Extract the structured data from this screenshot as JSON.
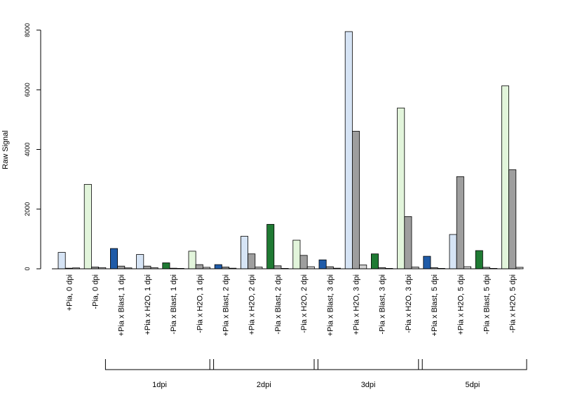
{
  "chart_data": {
    "type": "bar",
    "title": "",
    "xlabel": "",
    "ylabel": "Raw Signal",
    "ylim": [
      0,
      8000
    ],
    "y_ticks": [
      0,
      2000,
      4000,
      6000,
      8000
    ],
    "categories": [
      "+Pia, 0 dpi",
      "-Pia, 0 dpi",
      "+Pia x Blast, 1 dpi",
      "+Pia x H2O, 1 dpi",
      "-Pia x Blast, 1 dpi",
      "-Pia x H2O, 1 dpi",
      "+Pia x Blast, 2 dpi",
      "+Pia x H2O, 2 dpi",
      "-Pia x Blast, 2 dpi",
      "-Pia x H2O, 2 dpi",
      "+Pia x Blast, 3 dpi",
      "+Pia x H2O, 3 dpi",
      "-Pia x Blast, 3 dpi",
      "-Pia x H2O, 3 dpi",
      "+Pia x Blast, 5 dpi",
      "+Pia x H2O, 5 dpi",
      "-Pia x Blast, 5 dpi",
      "-Pia x H2O, 5 dpi"
    ],
    "bar_colors": [
      "#d6e4f5",
      "#e2f5db",
      "#1f5ba8",
      "#d6e4f5",
      "#1f7a33",
      "#e2f5db",
      "#1f5ba8",
      "#d6e4f5",
      "#1f7a33",
      "#e2f5db",
      "#1f5ba8",
      "#d6e4f5",
      "#1f7a33",
      "#e2f5db",
      "#1f5ba8",
      "#d6e4f5",
      "#1f7a33",
      "#e2f5db"
    ],
    "series": [
      {
        "values": [
          550,
          2830,
          680,
          480,
          200,
          590,
          140,
          1090,
          1490,
          960,
          300,
          7950,
          500,
          5390,
          420,
          1150,
          610,
          6130
        ]
      },
      {
        "values": [
          20,
          60,
          90,
          90,
          20,
          140,
          60,
          500,
          100,
          450,
          70,
          4610,
          40,
          1750,
          40,
          3090,
          50,
          3320
        ]
      },
      {
        "values": [
          30,
          40,
          30,
          40,
          10,
          50,
          20,
          60,
          10,
          70,
          20,
          130,
          10,
          60,
          10,
          70,
          10,
          50
        ]
      }
    ],
    "groups": [
      {
        "label": "1dpi",
        "first": 2,
        "last": 5
      },
      {
        "label": "2dpi",
        "first": 6,
        "last": 9
      },
      {
        "label": "3dpi",
        "first": 10,
        "last": 13
      },
      {
        "label": "5dpi",
        "first": 14,
        "last": 17
      }
    ],
    "grid": false,
    "legend": "none"
  }
}
